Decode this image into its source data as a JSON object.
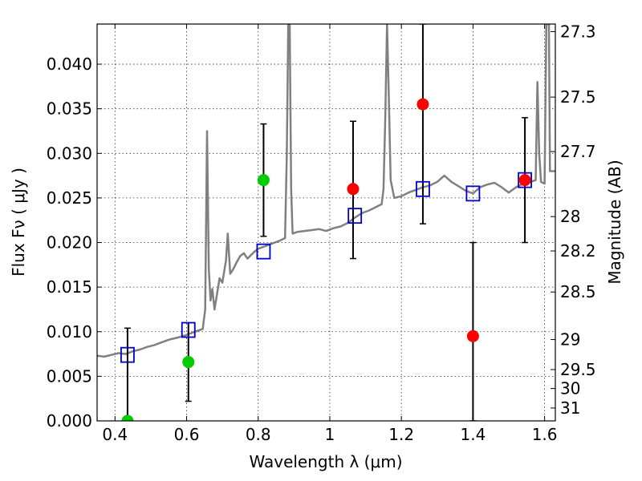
{
  "chart_data": {
    "type": "scatter",
    "title": "",
    "xlabel": "Wavelength  λ (μm)",
    "ylabel": "Flux  Fν  ( μJy )",
    "y2label": "Magnitude (AB)",
    "xlim": [
      0.35,
      1.63
    ],
    "ylim": [
      0.0,
      0.0445
    ],
    "grid": true,
    "x_ticks": [
      {
        "value": 0.4,
        "label": "0.4"
      },
      {
        "value": 0.6,
        "label": "0.6"
      },
      {
        "value": 0.8,
        "label": "0.8"
      },
      {
        "value": 1.0,
        "label": "1"
      },
      {
        "value": 1.2,
        "label": "1.2"
      },
      {
        "value": 1.4,
        "label": "1.4"
      },
      {
        "value": 1.6,
        "label": "1.6"
      }
    ],
    "y_ticks": [
      {
        "value": 0.0,
        "label": "0.000"
      },
      {
        "value": 0.005,
        "label": "0.005"
      },
      {
        "value": 0.01,
        "label": "0.010"
      },
      {
        "value": 0.015,
        "label": "0.015"
      },
      {
        "value": 0.02,
        "label": "0.020"
      },
      {
        "value": 0.025,
        "label": "0.025"
      },
      {
        "value": 0.03,
        "label": "0.030"
      },
      {
        "value": 0.035,
        "label": "0.035"
      },
      {
        "value": 0.04,
        "label": "0.040"
      }
    ],
    "y2_ticks": [
      {
        "mag": 27.3,
        "label": "27.3"
      },
      {
        "mag": 27.5,
        "label": "27.5"
      },
      {
        "mag": 27.7,
        "label": "27.7"
      },
      {
        "mag": 28.0,
        "label": "28"
      },
      {
        "mag": 28.2,
        "label": "28.2"
      },
      {
        "mag": 28.5,
        "label": "28.5"
      },
      {
        "mag": 29.0,
        "label": "29"
      },
      {
        "mag": 29.5,
        "label": "29.5"
      },
      {
        "mag": 30.0,
        "label": "30"
      },
      {
        "mag": 31.0,
        "label": "31"
      }
    ],
    "series": [
      {
        "type": "line",
        "color": "#808080",
        "points": [
          [
            0.35,
            0.0073
          ],
          [
            0.37,
            0.0072
          ],
          [
            0.39,
            0.0074
          ],
          [
            0.41,
            0.0076
          ],
          [
            0.43,
            0.0075
          ],
          [
            0.45,
            0.0078
          ],
          [
            0.47,
            0.008
          ],
          [
            0.49,
            0.0083
          ],
          [
            0.51,
            0.0085
          ],
          [
            0.53,
            0.0088
          ],
          [
            0.55,
            0.0091
          ],
          [
            0.57,
            0.0093
          ],
          [
            0.59,
            0.0095
          ],
          [
            0.61,
            0.0098
          ],
          [
            0.63,
            0.0101
          ],
          [
            0.645,
            0.0103
          ],
          [
            0.652,
            0.0125
          ],
          [
            0.657,
            0.0325
          ],
          [
            0.662,
            0.017
          ],
          [
            0.667,
            0.0135
          ],
          [
            0.672,
            0.0148
          ],
          [
            0.678,
            0.0125
          ],
          [
            0.685,
            0.0142
          ],
          [
            0.692,
            0.016
          ],
          [
            0.7,
            0.0155
          ],
          [
            0.71,
            0.018
          ],
          [
            0.715,
            0.021
          ],
          [
            0.722,
            0.0165
          ],
          [
            0.73,
            0.017
          ],
          [
            0.74,
            0.0178
          ],
          [
            0.75,
            0.0185
          ],
          [
            0.76,
            0.0188
          ],
          [
            0.77,
            0.0182
          ],
          [
            0.78,
            0.0186
          ],
          [
            0.79,
            0.019
          ],
          [
            0.8,
            0.0193
          ],
          [
            0.82,
            0.0196
          ],
          [
            0.84,
            0.0199
          ],
          [
            0.86,
            0.0202
          ],
          [
            0.875,
            0.0205
          ],
          [
            0.88,
            0.03
          ],
          [
            0.884,
            0.0445
          ],
          [
            0.888,
            0.0445
          ],
          [
            0.892,
            0.026
          ],
          [
            0.896,
            0.021
          ],
          [
            0.91,
            0.0212
          ],
          [
            0.93,
            0.0213
          ],
          [
            0.95,
            0.0214
          ],
          [
            0.97,
            0.0215
          ],
          [
            0.99,
            0.0213
          ],
          [
            1.01,
            0.0216
          ],
          [
            1.03,
            0.0218
          ],
          [
            1.05,
            0.0222
          ],
          [
            1.07,
            0.0228
          ],
          [
            1.09,
            0.0233
          ],
          [
            1.11,
            0.0236
          ],
          [
            1.13,
            0.024
          ],
          [
            1.145,
            0.0243
          ],
          [
            1.15,
            0.026
          ],
          [
            1.155,
            0.034
          ],
          [
            1.16,
            0.0445
          ],
          [
            1.165,
            0.036
          ],
          [
            1.17,
            0.027
          ],
          [
            1.18,
            0.025
          ],
          [
            1.2,
            0.0252
          ],
          [
            1.22,
            0.0256
          ],
          [
            1.24,
            0.0259
          ],
          [
            1.26,
            0.0262
          ],
          [
            1.28,
            0.0264
          ],
          [
            1.3,
            0.0268
          ],
          [
            1.32,
            0.0275
          ],
          [
            1.34,
            0.0268
          ],
          [
            1.36,
            0.0263
          ],
          [
            1.38,
            0.0258
          ],
          [
            1.4,
            0.0255
          ],
          [
            1.42,
            0.0262
          ],
          [
            1.44,
            0.0265
          ],
          [
            1.46,
            0.0267
          ],
          [
            1.48,
            0.0262
          ],
          [
            1.5,
            0.0256
          ],
          [
            1.52,
            0.0262
          ],
          [
            1.54,
            0.0266
          ],
          [
            1.56,
            0.0268
          ],
          [
            1.575,
            0.027
          ],
          [
            1.58,
            0.038
          ],
          [
            1.585,
            0.03
          ],
          [
            1.59,
            0.0268
          ],
          [
            1.6,
            0.0266
          ],
          [
            1.605,
            0.0445
          ],
          [
            1.612,
            0.0445
          ],
          [
            1.615,
            0.028
          ],
          [
            1.63,
            0.028
          ]
        ]
      },
      {
        "type": "scatter",
        "marker": "square",
        "color": "#0000cc",
        "points": [
          [
            0.435,
            0.0074
          ],
          [
            0.605,
            0.0102
          ],
          [
            0.815,
            0.019
          ],
          [
            1.07,
            0.023
          ],
          [
            1.26,
            0.026
          ],
          [
            1.4,
            0.0255
          ],
          [
            1.545,
            0.027
          ]
        ]
      },
      {
        "type": "scatter",
        "marker": "circle",
        "color": "#00cc00",
        "points": [
          [
            0.435,
            0.0
          ],
          [
            0.605,
            0.0066
          ],
          [
            0.815,
            0.027
          ]
        ]
      },
      {
        "type": "scatter",
        "marker": "circle",
        "color": "#ff0000",
        "points": [
          [
            1.065,
            0.026
          ],
          [
            1.26,
            0.0355
          ],
          [
            1.4,
            0.0095
          ],
          [
            1.545,
            0.027
          ]
        ]
      }
    ],
    "error_bars": [
      {
        "x": 0.435,
        "low": 0.0,
        "high": 0.0104
      },
      {
        "x": 0.605,
        "low": 0.0022,
        "high": 0.011
      },
      {
        "x": 0.815,
        "low": 0.0207,
        "high": 0.0333
      },
      {
        "x": 1.065,
        "low": 0.0182,
        "high": 0.0336
      },
      {
        "x": 1.26,
        "low": 0.0221,
        "high": 0.0445
      },
      {
        "x": 1.4,
        "low": 0.0,
        "high": 0.02
      },
      {
        "x": 1.545,
        "low": 0.02,
        "high": 0.034
      }
    ]
  }
}
